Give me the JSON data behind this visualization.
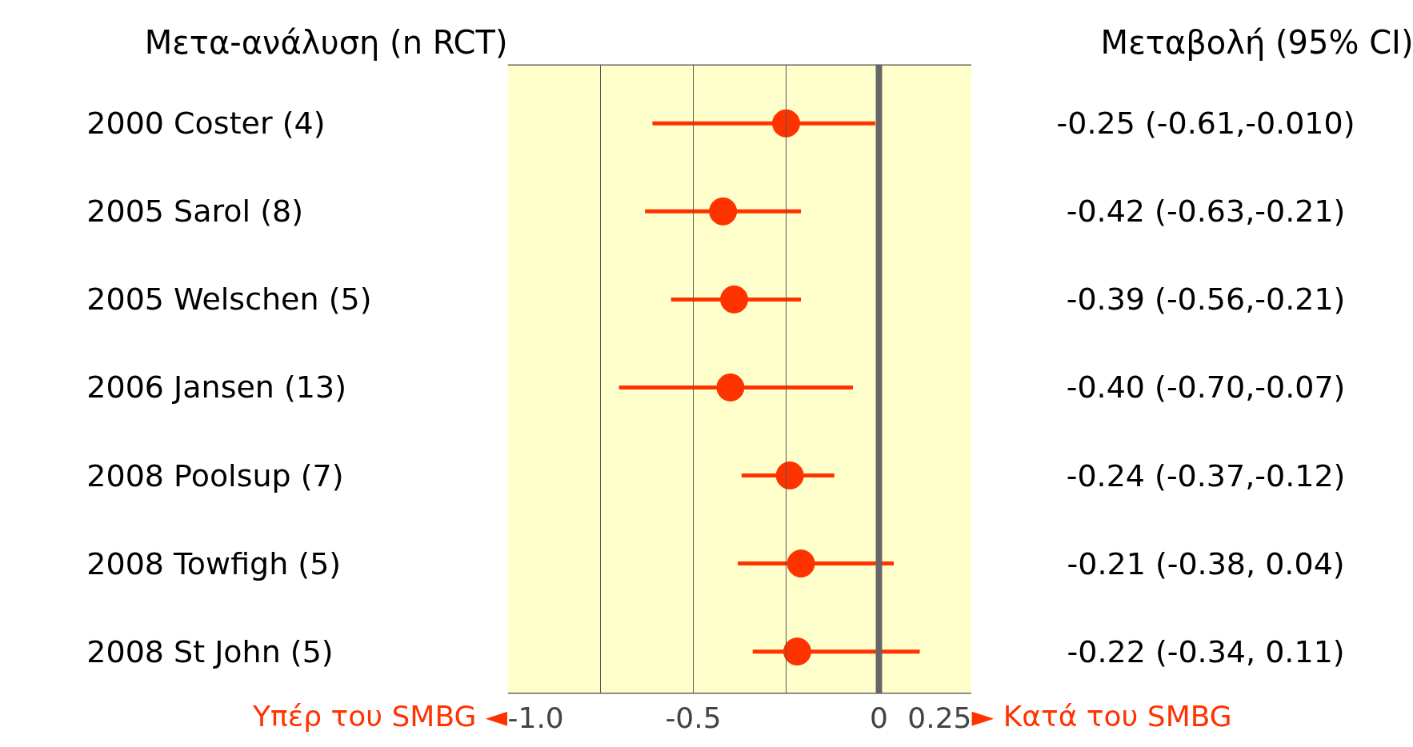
{
  "chart_data": {
    "type": "scatter",
    "orientation": "horizontal",
    "title": "Μετα-ανάλυση (n RCT)",
    "subtitle": "Μεταβολή (95% CI)",
    "categories": [
      "2000 Coster (4)",
      "2005 Sarol (8)",
      "2005 Welschen (5)",
      "2006 Jansen (13)",
      "2008 Poolsup (7)",
      "2008 Towfigh (5)",
      "2008 St John (5)"
    ],
    "series": [
      {
        "color": "#ff3300",
        "values": [
          -0.25,
          -0.42,
          -0.39,
          -0.4,
          -0.24,
          -0.21,
          -0.22
        ],
        "errors": [
          [
            -0.61,
            -0.01
          ],
          [
            -0.63,
            -0.21
          ],
          [
            -0.56,
            -0.21
          ],
          [
            -0.7,
            -0.07
          ],
          [
            -0.37,
            -0.12
          ],
          [
            -0.38,
            0.04
          ],
          [
            -0.34,
            0.11
          ]
        ],
        "value_labels": [
          "-0.25 (-0.61,-0.010)",
          "-0.42 (-0.63,-0.21)",
          "-0.39 (-0.56,-0.21)",
          "-0.40 (-0.70,-0.07)",
          "-0.24 (-0.37,-0.12)",
          "-0.21 (-0.38, 0.04)",
          "-0.22 (-0.34, 0.11)"
        ]
      }
    ],
    "xlim": [
      -1.0,
      0.25
    ],
    "xticks": [
      {
        "value": -1.0,
        "label": "-1.0"
      },
      {
        "value": -0.75,
        "label": null
      },
      {
        "value": -0.5,
        "label": "-0.5"
      },
      {
        "value": -0.25,
        "label": null
      },
      0,
      0.25
    ],
    "grid": "x",
    "marker": "circle",
    "bands": [
      {
        "axis": "x",
        "from": -1.0,
        "to": 0.25,
        "color": "#ffffcc"
      }
    ],
    "ref_lines": [
      {
        "axis": "x",
        "value": 0,
        "color": "#666666"
      }
    ],
    "annotations": [
      "Υπέρ του SMBG ◄",
      "► Κατά του SMBG"
    ]
  }
}
